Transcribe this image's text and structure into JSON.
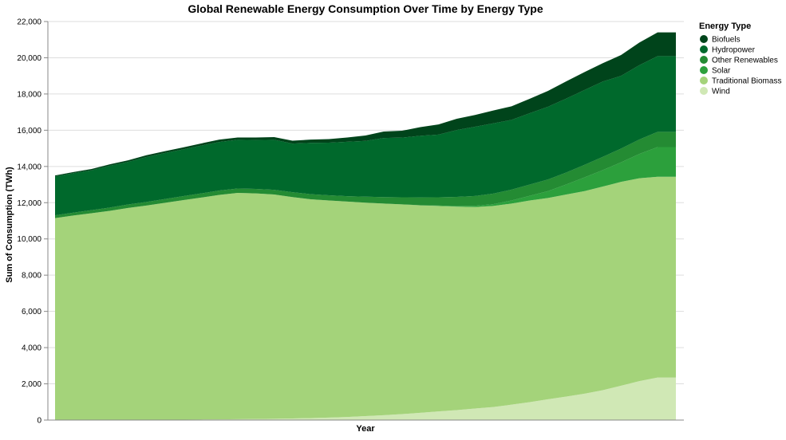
{
  "chart_data": {
    "type": "area",
    "stacked": true,
    "title": "Global Renewable Energy Consumption Over Time by Energy Type",
    "xlabel": "Year",
    "ylabel": "Sum of Consumption (TWh)",
    "ylim": [
      0,
      22000
    ],
    "yticks": [
      0,
      2000,
      4000,
      6000,
      8000,
      10000,
      12000,
      14000,
      16000,
      18000,
      20000,
      22000
    ],
    "ytick_labels": [
      "0",
      "2,000",
      "4,000",
      "6,000",
      "8,000",
      "10,000",
      "12,000",
      "14,000",
      "16,000",
      "18,000",
      "20,000",
      "22,000"
    ],
    "grid": true,
    "legend": {
      "title": "Energy Type",
      "placement": "right"
    },
    "x": [
      1,
      2,
      3,
      4,
      5,
      6,
      7,
      8,
      9,
      10,
      11,
      12,
      13,
      14,
      15,
      16,
      17,
      18,
      19,
      20,
      21,
      22,
      23,
      24,
      25,
      26,
      27,
      28,
      29,
      30,
      31,
      32,
      33,
      34,
      35
    ],
    "series": [
      {
        "name": "Wind",
        "color": "#d0e8b5",
        "values": [
          0,
          0,
          0,
          0,
          10,
          10,
          20,
          20,
          30,
          40,
          50,
          60,
          70,
          90,
          110,
          140,
          170,
          220,
          270,
          330,
          400,
          480,
          550,
          640,
          720,
          850,
          990,
          1150,
          1300,
          1460,
          1650,
          1900,
          2150,
          2350,
          2350
        ]
      },
      {
        "name": "Traditional Biomass",
        "color": "#a4d37a",
        "values": [
          11150,
          11290,
          11420,
          11550,
          11700,
          11830,
          11970,
          12120,
          12250,
          12390,
          12490,
          12450,
          12380,
          12220,
          12080,
          11980,
          11890,
          11780,
          11680,
          11580,
          11450,
          11340,
          11230,
          11120,
          11100,
          11100,
          11130,
          11110,
          11150,
          11180,
          11240,
          11250,
          11200,
          11080,
          11080
        ]
      },
      {
        "name": "Solar",
        "color": "#2ca03c",
        "values": [
          0,
          0,
          0,
          0,
          0,
          0,
          0,
          0,
          0,
          0,
          0,
          0,
          0,
          0,
          0,
          0,
          0,
          0,
          0,
          0,
          10,
          20,
          40,
          70,
          100,
          170,
          260,
          380,
          560,
          760,
          910,
          1080,
          1340,
          1640,
          1640
        ]
      },
      {
        "name": "Other Renewables",
        "color": "#248b33",
        "values": [
          150,
          160,
          170,
          180,
          190,
          200,
          210,
          220,
          230,
          240,
          240,
          250,
          260,
          270,
          280,
          290,
          300,
          330,
          360,
          390,
          430,
          460,
          500,
          540,
          580,
          600,
          620,
          640,
          660,
          690,
          730,
          760,
          800,
          840,
          840
        ]
      },
      {
        "name": "Hydropower",
        "color": "#00692c",
        "values": [
          2150,
          2180,
          2200,
          2310,
          2350,
          2480,
          2540,
          2580,
          2640,
          2680,
          2690,
          2700,
          2760,
          2680,
          2830,
          2900,
          3000,
          3080,
          3260,
          3290,
          3400,
          3460,
          3690,
          3820,
          3880,
          3850,
          3940,
          4020,
          4080,
          4130,
          4160,
          4010,
          4100,
          4180,
          4180
        ]
      },
      {
        "name": "Biofuels",
        "color": "#00441b",
        "values": [
          50,
          60,
          70,
          80,
          90,
          100,
          100,
          110,
          120,
          130,
          130,
          140,
          150,
          160,
          180,
          200,
          240,
          300,
          360,
          380,
          480,
          560,
          620,
          650,
          710,
          750,
          800,
          870,
          950,
          990,
          1010,
          1150,
          1250,
          1310,
          1310
        ]
      }
    ]
  }
}
